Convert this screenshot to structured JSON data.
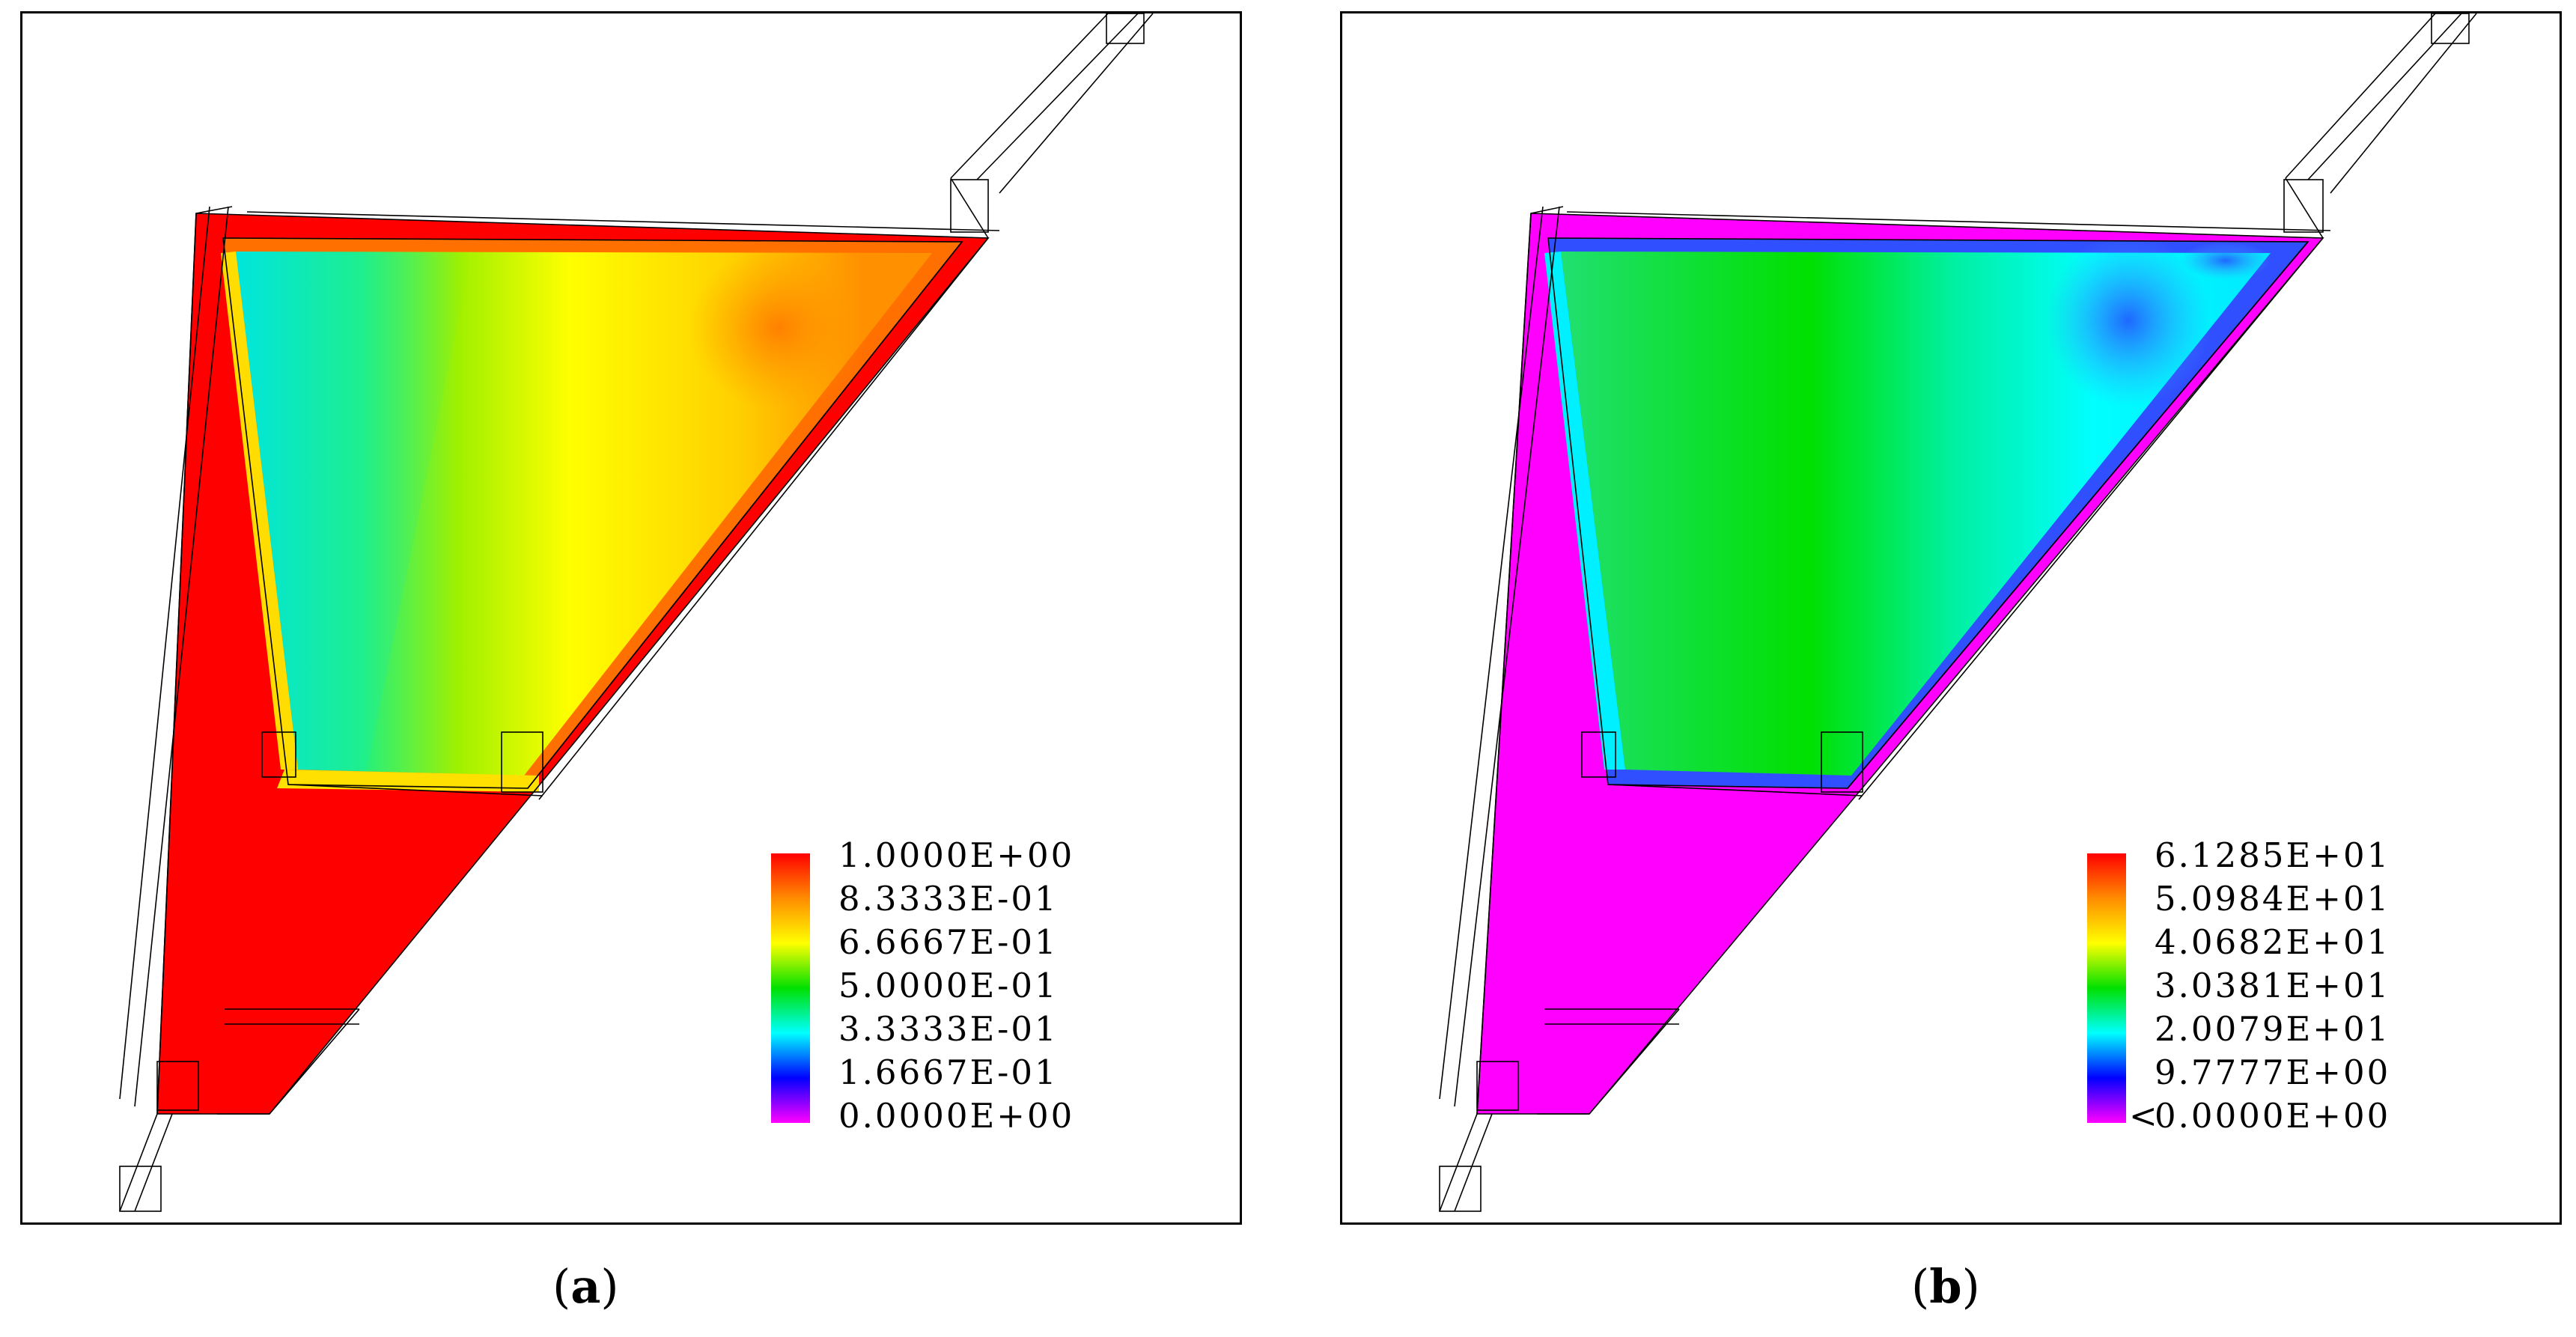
{
  "panels": [
    {
      "caption_letter": "a",
      "legend_ticks": [
        "1.0000E+00",
        "8.3333E-01",
        "6.6667E-01",
        "5.0000E-01",
        "3.3333E-01",
        "1.6667E-01",
        "0.0000E+00"
      ],
      "legend_lower_marker": "",
      "colormap": [
        "#ff0000",
        "#ff8c00",
        "#ffff00",
        "#00e000",
        "#00ffff",
        "#0000ff",
        "#ff00ff"
      ]
    },
    {
      "caption_letter": "b",
      "legend_ticks": [
        "6.1285E+01",
        "5.0984E+01",
        "4.0682E+01",
        "3.0381E+01",
        "2.0079E+01",
        "9.7777E+00",
        "0.0000E+00"
      ],
      "legend_lower_marker": "<",
      "colormap": [
        "#ff0000",
        "#ff8c00",
        "#ffff00",
        "#00e000",
        "#00ffff",
        "#0000ff",
        "#ff00ff"
      ]
    }
  ]
}
